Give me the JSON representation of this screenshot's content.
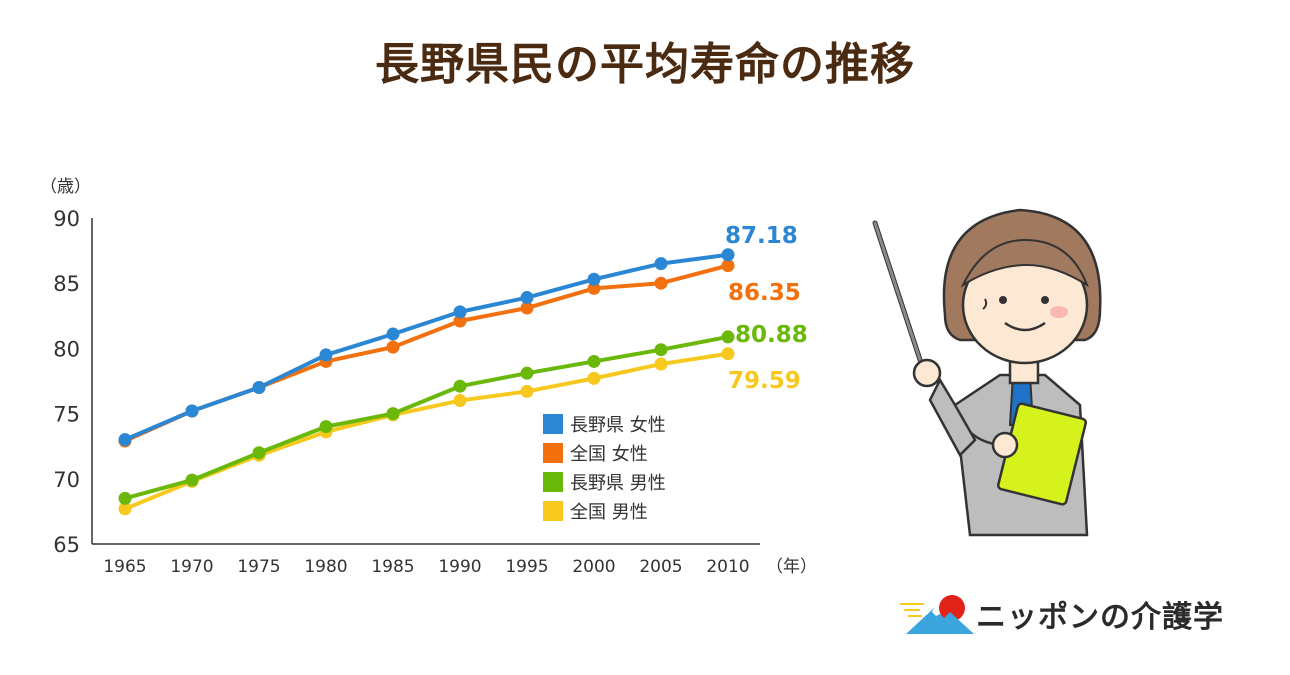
{
  "page": {
    "title": "長野県民の平均寿命の推移"
  },
  "chart_data": {
    "type": "line",
    "title": "長野県民の平均寿命の推移",
    "ylabel": "（歳）",
    "xlabel_unit": "（年）",
    "x": [
      1965,
      1970,
      1975,
      1980,
      1985,
      1990,
      1995,
      2000,
      2005,
      2010
    ],
    "x_tick_labels": [
      "1965",
      "1970",
      "1975",
      "1980",
      "1985",
      "1990",
      "1995",
      "2000",
      "2005",
      "2010"
    ],
    "ylim": [
      65,
      90
    ],
    "y_ticks": [
      90,
      85,
      80,
      75,
      70,
      65
    ],
    "grid": false,
    "legend_placement": "center-right",
    "series": [
      {
        "name": "長野県 女性",
        "color": "#2b87d3",
        "values": [
          73.0,
          75.2,
          77.0,
          79.5,
          81.1,
          82.8,
          83.9,
          85.3,
          86.5,
          87.18
        ],
        "end_label": "87.18"
      },
      {
        "name": "全国 女性",
        "color": "#f2700e",
        "values": [
          72.9,
          75.2,
          77.0,
          79.0,
          80.1,
          82.1,
          83.1,
          84.6,
          85.0,
          86.35
        ],
        "end_label": "86.35"
      },
      {
        "name": "長野県 男性",
        "color": "#6ab80a",
        "values": [
          68.5,
          69.9,
          72.0,
          74.0,
          75.0,
          77.1,
          78.1,
          79.0,
          79.9,
          80.88
        ],
        "end_label": "80.88"
      },
      {
        "name": "全国 男性",
        "color": "#f7c81e",
        "values": [
          67.7,
          69.8,
          71.8,
          73.6,
          74.9,
          76.0,
          76.7,
          77.7,
          78.8,
          79.59
        ],
        "end_label": "79.59"
      }
    ]
  },
  "logo": {
    "text": "ニッポンの介護学",
    "icon": "mount-fuji-sun-icon"
  },
  "illustration": {
    "icon": "teacher-with-pointer-icon"
  }
}
